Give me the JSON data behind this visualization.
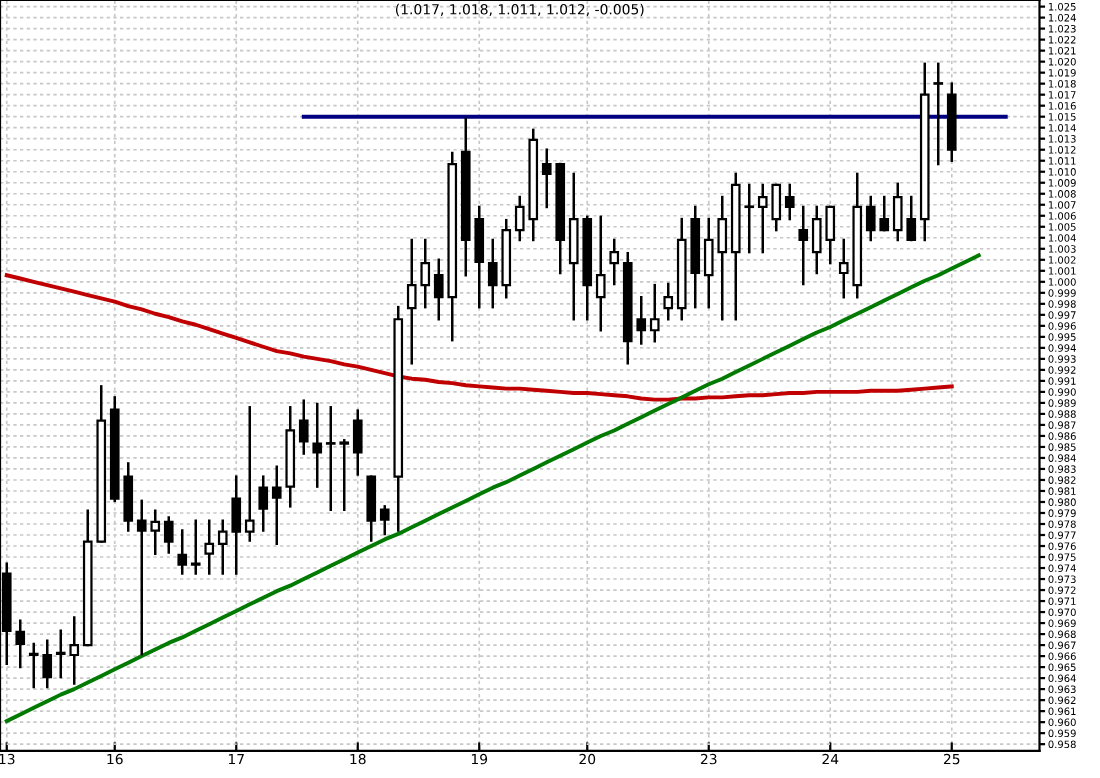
{
  "chart_data": {
    "type": "candlestick",
    "title": "(1.017, 1.018, 1.011, 1.012, -0.005)",
    "categories": [
      "13",
      null,
      null,
      null,
      null,
      null,
      null,
      null,
      "16",
      null,
      null,
      null,
      null,
      null,
      null,
      null,
      null,
      "17",
      null,
      null,
      null,
      null,
      null,
      null,
      null,
      null,
      "18",
      null,
      null,
      null,
      null,
      null,
      null,
      null,
      null,
      "19",
      null,
      null,
      null,
      null,
      null,
      null,
      null,
      "20",
      null,
      null,
      null,
      null,
      null,
      null,
      null,
      null,
      "23",
      null,
      null,
      null,
      null,
      null,
      null,
      null,
      null,
      "24",
      null,
      null,
      null,
      null,
      null,
      null,
      null,
      null,
      "25",
      null,
      null,
      null,
      null,
      null,
      null
    ],
    "ohlc": [
      [
        0.9735,
        0.9744,
        0.9653,
        0.9683
      ],
      [
        0.9682,
        0.9692,
        0.965,
        0.9671
      ],
      [
        0.9662,
        0.9671,
        0.9632,
        0.9661
      ],
      [
        0.9661,
        0.9674,
        0.9632,
        0.9641
      ],
      [
        0.9663,
        0.9683,
        0.9641,
        0.9662
      ],
      [
        0.9661,
        0.9695,
        0.9635,
        0.967
      ],
      [
        0.967,
        0.9792,
        0.967,
        0.9764
      ],
      [
        0.9764,
        0.9905,
        0.9764,
        0.9874
      ],
      [
        0.9884,
        0.9895,
        0.9801,
        0.9803
      ],
      [
        0.9823,
        0.9835,
        0.9774,
        0.9783
      ],
      [
        0.9783,
        0.9801,
        0.9662,
        0.9774
      ],
      [
        0.9774,
        0.9792,
        0.9753,
        0.9782
      ],
      [
        0.9782,
        0.9786,
        0.9754,
        0.9764
      ],
      [
        0.9752,
        0.9774,
        0.9735,
        0.9743
      ],
      [
        0.9744,
        0.9783,
        0.9735,
        0.9743
      ],
      [
        0.9753,
        0.9783,
        0.9735,
        0.9762
      ],
      [
        0.9762,
        0.9783,
        0.9735,
        0.9773
      ],
      [
        0.9803,
        0.9823,
        0.9735,
        0.9773
      ],
      [
        0.9773,
        0.9886,
        0.9765,
        0.9783
      ],
      [
        0.9813,
        0.9823,
        0.9774,
        0.9794
      ],
      [
        0.9813,
        0.9832,
        0.9762,
        0.9804
      ],
      [
        0.9814,
        0.9886,
        0.9796,
        0.9865
      ],
      [
        0.9874,
        0.9892,
        0.9844,
        0.9855
      ],
      [
        0.9853,
        0.9889,
        0.9814,
        0.9845
      ],
      [
        0.9853,
        0.9886,
        0.9793,
        0.9853
      ],
      [
        0.9854,
        0.9856,
        0.9793,
        0.9853
      ],
      [
        0.9874,
        0.9883,
        0.9825,
        0.9845
      ],
      [
        0.9823,
        0.9823,
        0.9765,
        0.9783
      ],
      [
        0.9793,
        0.9796,
        0.9771,
        0.9784
      ],
      [
        0.9823,
        0.9977,
        0.9774,
        0.9966
      ],
      [
        0.9976,
        1.0038,
        0.9926,
        0.9997
      ],
      [
        0.9997,
        1.0038,
        0.9977,
        1.0017
      ],
      [
        1.0006,
        1.002,
        0.9966,
        0.9986
      ],
      [
        0.9986,
        1.0117,
        0.9947,
        1.0107
      ],
      [
        1.0118,
        1.0148,
        1.0006,
        1.0038
      ],
      [
        1.0057,
        1.0068,
        0.9977,
        1.0018
      ],
      [
        1.0017,
        1.0038,
        0.9977,
        0.9997
      ],
      [
        0.9997,
        1.0056,
        0.9986,
        1.0047
      ],
      [
        1.0047,
        1.0077,
        1.0038,
        1.0068
      ],
      [
        1.0057,
        1.0138,
        1.0038,
        1.0129
      ],
      [
        1.0107,
        1.012,
        1.0068,
        1.0098
      ],
      [
        1.0107,
        1.0107,
        1.0008,
        1.0038
      ],
      [
        1.0017,
        1.0098,
        0.9966,
        1.0057
      ],
      [
        1.0057,
        1.0059,
        0.9966,
        0.9997
      ],
      [
        0.9986,
        1.0059,
        0.9956,
        1.0006
      ],
      [
        1.0017,
        1.0038,
        0.9998,
        1.0027
      ],
      [
        1.0017,
        1.0026,
        0.9926,
        0.9946
      ],
      [
        0.9966,
        0.9986,
        0.9944,
        0.9956
      ],
      [
        0.9956,
        0.9997,
        0.9946,
        0.9966
      ],
      [
        0.9976,
        0.9998,
        0.9966,
        0.9986
      ],
      [
        0.9976,
        1.0057,
        0.9966,
        1.0038
      ],
      [
        1.0057,
        1.0068,
        0.9977,
        1.0008
      ],
      [
        1.0006,
        1.0057,
        0.9977,
        1.0038
      ],
      [
        1.0027,
        1.0077,
        0.9966,
        1.0057
      ],
      [
        1.0027,
        1.0098,
        0.9966,
        1.0088
      ],
      [
        1.0068,
        1.0088,
        1.0027,
        1.0068
      ],
      [
        1.0068,
        1.0088,
        1.0027,
        1.0077
      ],
      [
        1.0057,
        1.0088,
        1.0047,
        1.0088
      ],
      [
        1.0077,
        1.0088,
        1.0057,
        1.0068
      ],
      [
        1.0047,
        1.0068,
        0.9998,
        1.0038
      ],
      [
        1.0027,
        1.0068,
        1.0008,
        1.0057
      ],
      [
        1.0038,
        1.0068,
        1.0017,
        1.0068
      ],
      [
        1.0008,
        1.0038,
        0.9986,
        1.0017
      ],
      [
        0.9997,
        1.0098,
        0.9986,
        1.0068
      ],
      [
        1.0068,
        1.0077,
        1.0038,
        1.0047
      ],
      [
        1.0057,
        1.0077,
        1.0047,
        1.0047
      ],
      [
        1.0047,
        1.0089,
        1.0038,
        1.0077
      ],
      [
        1.0057,
        1.0077,
        1.0038,
        1.0038
      ],
      [
        1.0057,
        1.0198,
        1.0038,
        1.017
      ],
      [
        1.018,
        1.0198,
        1.0107,
        1.018
      ],
      [
        1.017,
        1.018,
        1.011,
        1.012
      ],
      null,
      null,
      null,
      null,
      null,
      null
    ],
    "series": [
      {
        "type": "line",
        "color": "#c00000",
        "values": [
          1.0006,
          1.0003,
          1.0,
          0.9997,
          0.9994,
          0.9991,
          0.9988,
          0.9985,
          0.9982,
          0.9978,
          0.9975,
          0.9971,
          0.9968,
          0.9964,
          0.9961,
          0.9957,
          0.9953,
          0.9949,
          0.9945,
          0.9941,
          0.9937,
          0.9935,
          0.9932,
          0.993,
          0.9928,
          0.9925,
          0.9923,
          0.992,
          0.9917,
          0.9914,
          0.9912,
          0.9911,
          0.9909,
          0.9908,
          0.9906,
          0.9905,
          0.9904,
          0.9903,
          0.9903,
          0.9902,
          0.9901,
          0.99,
          0.9899,
          0.9899,
          0.9898,
          0.9897,
          0.9896,
          0.9894,
          0.9893,
          0.9893,
          0.9894,
          0.9894,
          0.9895,
          0.9895,
          0.9896,
          0.9897,
          0.9897,
          0.9898,
          0.9899,
          0.9899,
          0.99,
          0.99,
          0.99,
          0.99,
          0.9901,
          0.9901,
          0.9901,
          0.9902,
          0.9903,
          0.9904,
          0.9905,
          null,
          null,
          null,
          null,
          null,
          null
        ]
      },
      {
        "type": "line",
        "color": "#007a00",
        "values": [
          0.9601,
          0.9607,
          0.9613,
          0.9619,
          0.9625,
          0.963,
          0.9636,
          0.9642,
          0.9648,
          0.9654,
          0.966,
          0.9666,
          0.9672,
          0.9677,
          0.9683,
          0.9689,
          0.9695,
          0.9701,
          0.9707,
          0.9713,
          0.9719,
          0.9724,
          0.973,
          0.9736,
          0.9742,
          0.9748,
          0.9754,
          0.976,
          0.9766,
          0.9771,
          0.9777,
          0.9783,
          0.9789,
          0.9795,
          0.9801,
          0.9807,
          0.9813,
          0.9818,
          0.9824,
          0.983,
          0.9836,
          0.9842,
          0.9848,
          0.9854,
          0.986,
          0.9865,
          0.9871,
          0.9877,
          0.9883,
          0.9889,
          0.9895,
          0.9901,
          0.9907,
          0.9912,
          0.9918,
          0.9924,
          0.993,
          0.9936,
          0.9942,
          0.9948,
          0.9954,
          0.9959,
          0.9965,
          0.9971,
          0.9977,
          0.9983,
          0.9989,
          0.9995,
          1.0001,
          1.0006,
          1.0012,
          1.0018,
          1.0024,
          null,
          null,
          null,
          null
        ]
      },
      {
        "type": "line",
        "color": "#000080",
        "values": [
          null,
          null,
          null,
          null,
          null,
          null,
          null,
          null,
          null,
          null,
          null,
          null,
          null,
          null,
          null,
          null,
          null,
          null,
          null,
          null,
          null,
          null,
          1.015,
          1.015,
          1.015,
          1.015,
          1.015,
          1.015,
          1.015,
          1.015,
          1.015,
          1.015,
          1.015,
          1.015,
          1.015,
          1.015,
          1.015,
          1.015,
          1.015,
          1.015,
          1.015,
          1.015,
          1.015,
          1.015,
          1.015,
          1.015,
          1.015,
          1.015,
          1.015,
          1.015,
          1.015,
          1.015,
          1.015,
          1.015,
          1.015,
          1.015,
          1.015,
          1.015,
          1.015,
          1.015,
          1.015,
          1.015,
          1.015,
          1.015,
          1.015,
          1.015,
          1.015,
          1.015,
          1.015,
          1.015,
          1.015,
          1.015,
          1.015,
          1.015,
          1.015,
          null,
          null
        ]
      }
    ],
    "ylim": [
      0.9574,
      1.0256
    ],
    "yticks": [
      0.958,
      0.959,
      {
        "value": 0.96,
        "label": "0.960"
      },
      0.961,
      0.962,
      0.963,
      0.964,
      0.965,
      0.966,
      0.967,
      0.968,
      0.969,
      {
        "value": 0.97,
        "label": "0.970"
      },
      0.971,
      0.972,
      0.973,
      0.974,
      0.975,
      0.976,
      0.977,
      0.978,
      0.979,
      {
        "value": 0.98,
        "label": "0.980"
      },
      0.981,
      0.982,
      0.983,
      0.984,
      0.985,
      0.986,
      0.987,
      0.988,
      0.989,
      {
        "value": 0.99,
        "label": "0.990"
      },
      0.991,
      0.992,
      0.993,
      0.994,
      0.995,
      0.996,
      0.997,
      0.998,
      0.999,
      {
        "value": 1.0,
        "label": "1.000"
      },
      1.001,
      1.002,
      1.003,
      1.004,
      1.005,
      1.006,
      1.007,
      1.008,
      1.009,
      {
        "value": 1.01,
        "label": "1.010"
      },
      1.011,
      1.012,
      1.013,
      1.014,
      1.015,
      1.016,
      1.017,
      1.018,
      1.019,
      {
        "value": 1.02,
        "label": "1.020"
      },
      1.021,
      1.022,
      1.023,
      1.024,
      1.025
    ],
    "grid": true
  }
}
